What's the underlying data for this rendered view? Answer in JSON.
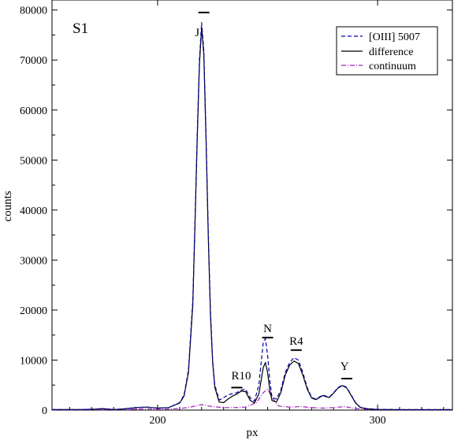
{
  "chart_data": {
    "type": "line",
    "title": "",
    "panel_label": "S1",
    "xlabel": "px",
    "ylabel": "counts",
    "xlim": [
      152,
      334
    ],
    "ylim": [
      0,
      82000
    ],
    "xticks": [
      200,
      300
    ],
    "yticks": [
      0,
      10000,
      20000,
      30000,
      40000,
      50000,
      60000,
      70000,
      80000
    ],
    "legend": {
      "placement": "top-right",
      "entries": [
        "[OIII] 5007",
        "difference",
        "continuum"
      ]
    },
    "series": [
      {
        "name": "[OIII] 5007",
        "color": "#0000aa",
        "style": "dashed",
        "x": [
          152,
          165,
          172,
          175,
          180,
          185,
          190,
          195,
          200,
          205,
          210,
          212,
          214,
          216,
          217,
          218,
          219,
          220,
          221,
          222,
          223,
          224,
          225,
          226,
          228,
          230,
          232,
          234,
          236,
          238,
          240,
          242,
          244,
          246,
          248,
          249,
          250,
          251,
          252,
          254,
          256,
          258,
          260,
          262,
          264,
          266,
          268,
          270,
          272,
          275,
          278,
          280,
          282,
          284,
          286,
          288,
          290,
          292,
          295,
          300,
          310,
          320,
          334
        ],
        "y": [
          100,
          100,
          200,
          300,
          100,
          250,
          500,
          600,
          400,
          500,
          1500,
          3000,
          8000,
          22000,
          38000,
          55000,
          70000,
          77500,
          72000,
          55000,
          36000,
          20000,
          10000,
          5000,
          2000,
          2500,
          3000,
          3300,
          3500,
          4000,
          4200,
          2500,
          1800,
          5000,
          13500,
          14300,
          11000,
          6000,
          2500,
          2200,
          4000,
          7500,
          9500,
          10500,
          10000,
          7500,
          4500,
          2500,
          2200,
          3000,
          2600,
          3500,
          4500,
          5000,
          4500,
          3000,
          1500,
          600,
          300,
          150,
          100,
          100,
          100
        ]
      },
      {
        "name": "difference",
        "color": "#000000",
        "style": "solid",
        "x": [
          152,
          165,
          172,
          175,
          180,
          185,
          190,
          195,
          200,
          205,
          210,
          212,
          214,
          216,
          217,
          218,
          219,
          220,
          221,
          222,
          223,
          224,
          225,
          226,
          228,
          230,
          232,
          234,
          236,
          238,
          240,
          242,
          244,
          246,
          248,
          249,
          250,
          251,
          252,
          254,
          256,
          258,
          260,
          262,
          264,
          266,
          268,
          270,
          272,
          275,
          278,
          280,
          282,
          284,
          286,
          288,
          290,
          292,
          295,
          300,
          310,
          320,
          334
        ],
        "y": [
          100,
          100,
          200,
          300,
          100,
          250,
          500,
          600,
          400,
          500,
          1400,
          2800,
          7500,
          21000,
          37000,
          54000,
          69000,
          76500,
          71000,
          54000,
          35000,
          19000,
          9500,
          4600,
          1600,
          1500,
          2200,
          2800,
          3200,
          3800,
          3700,
          2000,
          1400,
          3200,
          8500,
          9500,
          7500,
          4000,
          1900,
          1600,
          3500,
          7000,
          9000,
          9800,
          9300,
          7000,
          4200,
          2400,
          2100,
          2900,
          2500,
          3400,
          4400,
          4900,
          4400,
          2900,
          1400,
          550,
          250,
          120,
          80,
          80,
          80
        ]
      },
      {
        "name": "continuum",
        "color": "#a020c0",
        "style": "dashdot",
        "x": [
          152,
          165,
          172,
          175,
          180,
          185,
          190,
          195,
          200,
          205,
          210,
          215,
          218,
          220,
          222,
          225,
          230,
          235,
          240,
          245,
          248,
          250,
          252,
          255,
          260,
          265,
          270,
          275,
          280,
          285,
          290,
          295,
          300,
          310,
          320,
          334
        ],
        "y": [
          50,
          50,
          100,
          150,
          50,
          100,
          200,
          250,
          150,
          200,
          300,
          600,
          900,
          1100,
          900,
          700,
          500,
          500,
          600,
          1500,
          3500,
          4200,
          2500,
          800,
          600,
          700,
          500,
          400,
          500,
          700,
          300,
          150,
          100,
          60,
          50,
          50
        ]
      }
    ],
    "annotations": [
      {
        "text": "J",
        "x": 218
      },
      {
        "text": "R10",
        "x": 238
      },
      {
        "text": "N",
        "x": 250
      },
      {
        "text": "R4",
        "x": 263
      },
      {
        "text": "Y",
        "x": 285
      }
    ],
    "markers": [
      {
        "x": 221,
        "y": 79500
      },
      {
        "x": 236,
        "y": 4500
      },
      {
        "x": 250,
        "y": 14500
      },
      {
        "x": 263,
        "y": 12000
      },
      {
        "x": 286,
        "y": 6300
      }
    ]
  }
}
